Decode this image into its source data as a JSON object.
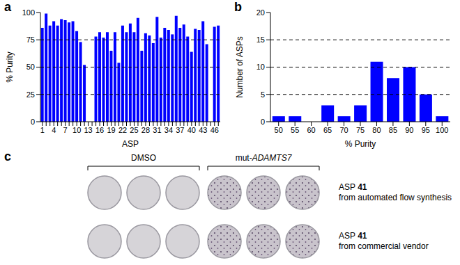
{
  "chart_data": [
    {
      "type": "bar",
      "title": "a",
      "x_label": "ASP",
      "y_label": "% Purity",
      "categories": [
        "1",
        null,
        null,
        "4",
        null,
        null,
        "7",
        null,
        null,
        "10",
        null,
        null,
        "13",
        null,
        null,
        "16",
        null,
        null,
        "19",
        null,
        null,
        "22",
        null,
        null,
        "25",
        null,
        null,
        "28",
        null,
        null,
        "31",
        null,
        null,
        "34",
        null,
        null,
        "37",
        null,
        null,
        "40",
        null,
        null,
        "43",
        null,
        null,
        "46",
        null
      ],
      "values": [
        86,
        99,
        88,
        92,
        88,
        94,
        93,
        91,
        92,
        83,
        73,
        52,
        null,
        null,
        78,
        82,
        77,
        82,
        65,
        82,
        54,
        88,
        82,
        90,
        82,
        95,
        65,
        81,
        79,
        72,
        96,
        77,
        86,
        84,
        80,
        97,
        86,
        89,
        78,
        64,
        85,
        84,
        92,
        71,
        null,
        87,
        88
      ],
      "color": "#0000ff",
      "ylim": [
        0,
        100
      ],
      "yticks": [
        0,
        25,
        50,
        75,
        100
      ],
      "grid": true
    },
    {
      "type": "bar",
      "title": "b",
      "x_label": "% Purity",
      "y_label": "Number of ASPs",
      "categories": [
        "50",
        "55",
        "60",
        "65",
        "70",
        "75",
        "80",
        "85",
        "90",
        "95",
        "100"
      ],
      "values": [
        1,
        1,
        0,
        3,
        1,
        3,
        11,
        8,
        10,
        5,
        1
      ],
      "color": "#0000ff",
      "ylim": [
        0,
        20
      ],
      "yticks": [
        0,
        5,
        10,
        15,
        20
      ],
      "grid": true
    }
  ],
  "image_panel": {
    "title": "c",
    "columns": [
      [
        "DMSO"
      ],
      [
        "mut-",
        "ADAMTS7"
      ]
    ],
    "rows": [
      [
        [
          "ASP ",
          "41"
        ],
        [
          "from automated flow synthesis"
        ]
      ],
      [
        [
          "ASP ",
          "41"
        ],
        [
          "from commercial vendor"
        ]
      ]
    ]
  }
}
